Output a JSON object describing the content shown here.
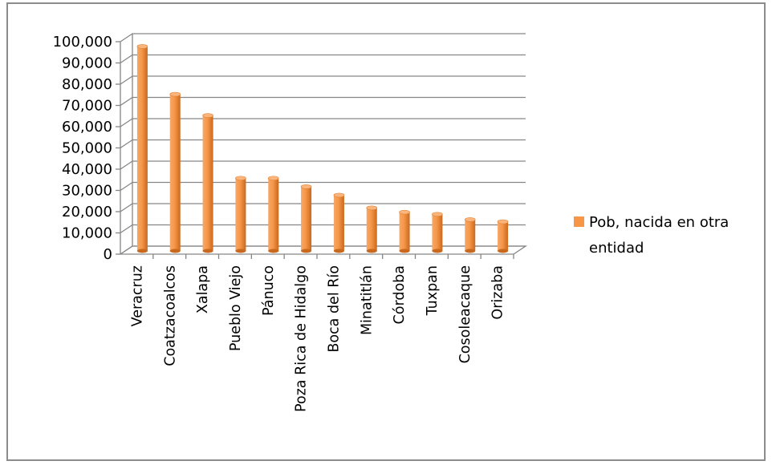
{
  "chart_data": {
    "type": "bar",
    "categories": [
      "Veracruz",
      "Coatzacoalcos",
      "Xalapa",
      "Pueblo Viejo",
      "Pánuco",
      "Poza Rica de Hidalgo",
      "Boca del Río",
      "Minatitlán",
      "Córdoba",
      "Tuxpan",
      "Cosoleacaque",
      "Orizaba"
    ],
    "series": [
      {
        "name": "Pob, nacida en otra entidad",
        "values": [
          97000,
          74500,
          64500,
          35000,
          35000,
          31000,
          27000,
          21000,
          19000,
          18000,
          15500,
          14500
        ]
      }
    ],
    "ylim": [
      0,
      100000
    ],
    "yticks": [
      "0",
      "10,000",
      "20,000",
      "30,000",
      "40,000",
      "50,000",
      "60,000",
      "70,000",
      "80,000",
      "90,000",
      "100,000"
    ],
    "grid": true,
    "legend_position": "right",
    "bar_color": "#F79646",
    "title": "",
    "xlabel": "",
    "ylabel": ""
  },
  "legend": {
    "line1": "Pob, nacida en otra",
    "line2": "entidad"
  }
}
